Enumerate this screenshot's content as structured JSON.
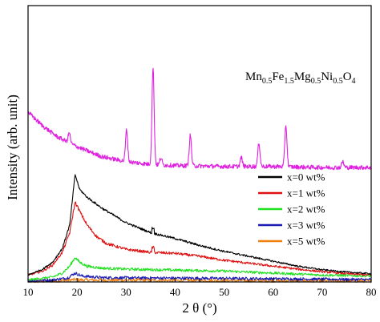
{
  "chart_data": {
    "type": "line",
    "title": "",
    "xlabel": "2 θ (°)",
    "ylabel": "Intensity (arb. unit)",
    "xlim": [
      10,
      80
    ],
    "y_ticks_shown": false,
    "x_ticks": [
      10,
      20,
      30,
      40,
      50,
      60,
      70,
      80
    ],
    "x_tick_labels": [
      "10",
      "20",
      "30",
      "40",
      "50",
      "60",
      "70",
      "80"
    ],
    "grid": false,
    "legend_position": "right-middle",
    "annotation": {
      "formula_parts": [
        {
          "text": "Mn",
          "sub": false
        },
        {
          "text": "0.5",
          "sub": true
        },
        {
          "text": "Fe",
          "sub": false
        },
        {
          "text": "1.5",
          "sub": true
        },
        {
          "text": "Mg",
          "sub": false
        },
        {
          "text": "0.5",
          "sub": true
        },
        {
          "text": "Ni",
          "sub": false
        },
        {
          "text": "0.5",
          "sub": true
        },
        {
          "text": "O",
          "sub": false
        },
        {
          "text": "4",
          "sub": true
        }
      ]
    },
    "ferrite_curve": {
      "color": "#e020e0",
      "background": [
        [
          10,
          8.6
        ],
        [
          13,
          7.9
        ],
        [
          16,
          7.35
        ],
        [
          20,
          6.85
        ],
        [
          25,
          6.35
        ],
        [
          30,
          6.1
        ],
        [
          35,
          5.95
        ],
        [
          40,
          5.9
        ],
        [
          50,
          5.85
        ],
        [
          60,
          5.85
        ],
        [
          70,
          5.8
        ],
        [
          80,
          5.8
        ]
      ],
      "peaks": [
        {
          "x": 18.4,
          "height": 0.5
        },
        {
          "x": 30.1,
          "height": 1.6
        },
        {
          "x": 35.5,
          "height": 4.9
        },
        {
          "x": 37.1,
          "height": 0.35
        },
        {
          "x": 43.1,
          "height": 1.55
        },
        {
          "x": 53.5,
          "height": 0.45
        },
        {
          "x": 57.1,
          "height": 1.2
        },
        {
          "x": 62.6,
          "height": 2.1
        },
        {
          "x": 74.2,
          "height": 0.3
        }
      ]
    },
    "series": [
      {
        "name": "x=0 wt%",
        "color": "#000000",
        "points": [
          [
            10,
            0.35
          ],
          [
            13,
            0.65
          ],
          [
            15,
            1.0
          ],
          [
            17,
            1.7
          ],
          [
            18.5,
            2.9
          ],
          [
            19.6,
            5.45
          ],
          [
            20.5,
            4.7
          ],
          [
            22,
            4.3
          ],
          [
            25,
            3.75
          ],
          [
            30,
            3.0
          ],
          [
            35,
            2.5
          ],
          [
            40,
            2.2
          ],
          [
            45,
            1.85
          ],
          [
            50,
            1.55
          ],
          [
            55,
            1.3
          ],
          [
            60,
            1.05
          ],
          [
            65,
            0.8
          ],
          [
            70,
            0.62
          ],
          [
            75,
            0.5
          ],
          [
            80,
            0.42
          ]
        ]
      },
      {
        "name": "x=1 wt%",
        "color": "#e01010",
        "points": [
          [
            10,
            0.35
          ],
          [
            13,
            0.55
          ],
          [
            15,
            0.85
          ],
          [
            17,
            1.5
          ],
          [
            18.5,
            2.5
          ],
          [
            19.6,
            4.05
          ],
          [
            20.5,
            3.6
          ],
          [
            22,
            2.9
          ],
          [
            24,
            2.3
          ],
          [
            26,
            1.95
          ],
          [
            28,
            1.8
          ],
          [
            30,
            1.65
          ],
          [
            35,
            1.5
          ],
          [
            40,
            1.45
          ],
          [
            45,
            1.3
          ],
          [
            50,
            1.1
          ],
          [
            55,
            0.95
          ],
          [
            60,
            0.8
          ],
          [
            65,
            0.65
          ],
          [
            70,
            0.52
          ],
          [
            75,
            0.42
          ],
          [
            80,
            0.35
          ]
        ]
      },
      {
        "name": "x=2 wt%",
        "color": "#20e020",
        "points": [
          [
            10,
            0.1
          ],
          [
            15,
            0.25
          ],
          [
            17,
            0.45
          ],
          [
            18.5,
            0.8
          ],
          [
            19.6,
            1.25
          ],
          [
            20.5,
            1.0
          ],
          [
            22,
            0.8
          ],
          [
            25,
            0.7
          ],
          [
            30,
            0.65
          ],
          [
            40,
            0.6
          ],
          [
            50,
            0.55
          ],
          [
            60,
            0.45
          ],
          [
            70,
            0.35
          ],
          [
            80,
            0.3
          ]
        ]
      },
      {
        "name": "x=3 wt%",
        "color": "#1a1ab4",
        "points": [
          [
            10,
            0.05
          ],
          [
            15,
            0.1
          ],
          [
            18,
            0.2
          ],
          [
            19.6,
            0.45
          ],
          [
            21,
            0.3
          ],
          [
            25,
            0.22
          ],
          [
            35,
            0.2
          ],
          [
            50,
            0.18
          ],
          [
            65,
            0.15
          ],
          [
            80,
            0.12
          ]
        ]
      },
      {
        "name": "x=5 wt%",
        "color": "#f08010",
        "points": [
          [
            10,
            0.02
          ],
          [
            15,
            0.05
          ],
          [
            18,
            0.08
          ],
          [
            19.6,
            0.12
          ],
          [
            21,
            0.1
          ],
          [
            40,
            0.08
          ],
          [
            60,
            0.06
          ],
          [
            80,
            0.05
          ]
        ]
      }
    ]
  }
}
